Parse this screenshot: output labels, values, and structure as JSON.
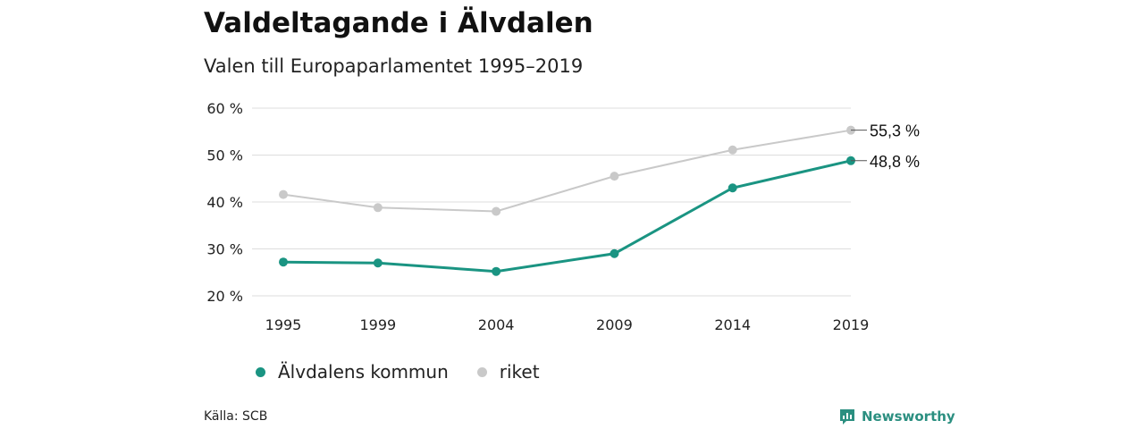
{
  "header": {
    "title": "Valdeltagande i Älvdalen",
    "subtitle": "Valen till Europaparlamentet 1995–2019"
  },
  "footer": {
    "source": "Källa: SCB",
    "brand": "Newsworthy"
  },
  "colors": {
    "alvdalen": "#1a9482",
    "riket": "#c9c9c9",
    "grid": "#dddddd",
    "brand": "#2b8f80"
  },
  "chart_data": {
    "type": "line",
    "x": [
      "1995",
      "1999",
      "2004",
      "2009",
      "2014",
      "2019"
    ],
    "yticks": [
      "20 %",
      "30 %",
      "40 %",
      "50 %",
      "60 %"
    ],
    "ylim": [
      20,
      60
    ],
    "grid": true,
    "legend_position": "bottom-left",
    "series": [
      {
        "name": "Älvdalens kommun",
        "color": "#1a9482",
        "values": [
          27.2,
          27.0,
          25.2,
          29.0,
          43.0,
          48.8
        ],
        "end_label": "48,8 %"
      },
      {
        "name": "riket",
        "color": "#c9c9c9",
        "values": [
          41.6,
          38.8,
          38.0,
          45.5,
          51.1,
          55.3
        ],
        "end_label": "55,3 %"
      }
    ]
  }
}
